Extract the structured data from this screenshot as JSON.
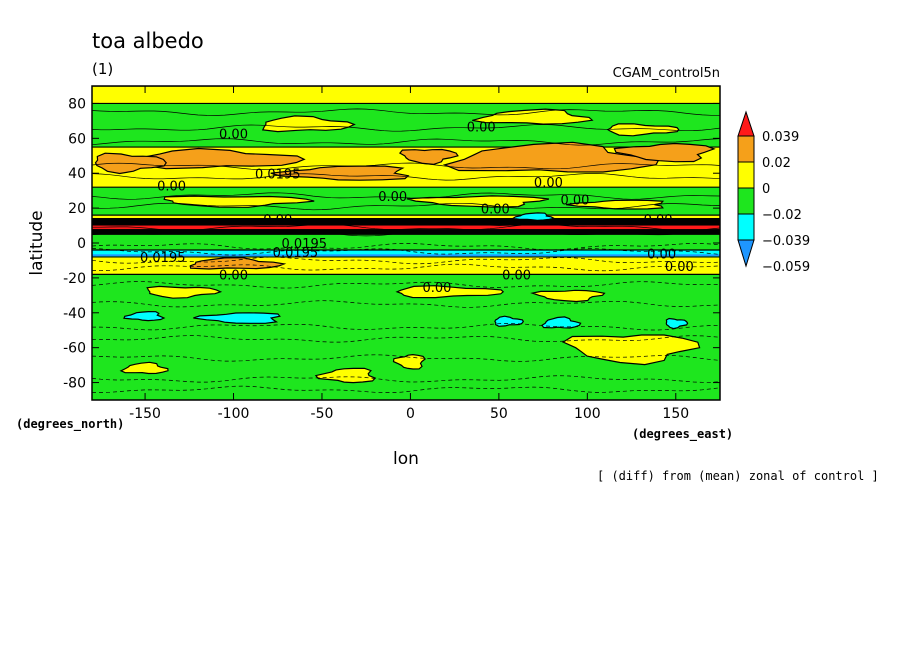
{
  "chart_data": {
    "type": "heatmap",
    "title": "toa albedo",
    "subtitle": "(1)",
    "run_label": "CGAM_control5n",
    "xlabel": "lon",
    "ylabel": "latitude",
    "x_units": "(degrees_east)",
    "y_units": "(degrees_north)",
    "xlim": [
      -180,
      175
    ],
    "ylim": [
      -90,
      90
    ],
    "x_ticks": [
      -150,
      -100,
      -50,
      0,
      50,
      100,
      150
    ],
    "y_ticks": [
      80,
      60,
      40,
      20,
      0,
      -20,
      -40,
      -60,
      -80
    ],
    "x_tick_labels": [
      "-150",
      "-100",
      "-50",
      "0",
      "50",
      "100",
      "150"
    ],
    "y_tick_labels": [
      "80",
      "60",
      "40",
      "20",
      "0",
      "-20",
      "-40",
      "-60",
      "-80"
    ],
    "colorbar": {
      "levels": [
        0.039,
        0.02,
        0,
        -0.02,
        -0.039,
        -0.059
      ],
      "labels": [
        "0.039",
        "0.02",
        "0",
        "−0.02",
        "−0.039",
        "−0.059"
      ],
      "colors": [
        "#ff1a1a",
        "#f5a01a",
        "#ffff00",
        "#1ee61e",
        "#00ffff",
        "#1e96ff"
      ]
    },
    "zonal_bands": [
      {
        "lat_min": 80,
        "lat_max": 90,
        "class": "yellow"
      },
      {
        "lat_min": 55,
        "lat_max": 80,
        "class": "green"
      },
      {
        "lat_min": 32,
        "lat_max": 55,
        "class": "yellow"
      },
      {
        "lat_min": 16,
        "lat_max": 32,
        "class": "green"
      },
      {
        "lat_min": 14,
        "lat_max": 16,
        "class": "yellow"
      },
      {
        "lat_min": 5,
        "lat_max": 14,
        "class": "black"
      },
      {
        "lat_min": -4,
        "lat_max": 5,
        "class": "green"
      },
      {
        "lat_min": -8,
        "lat_max": -4,
        "class": "cyan"
      },
      {
        "lat_min": -18,
        "lat_max": -8,
        "class": "yellow"
      },
      {
        "lat_min": -90,
        "lat_max": -18,
        "class": "green"
      }
    ],
    "patches": [
      {
        "lon": 80,
        "lat": 48,
        "rlon": 55,
        "rlat": 8,
        "class": "orange"
      },
      {
        "lon": -110,
        "lat": 48,
        "rlon": 45,
        "rlat": 5,
        "class": "orange"
      },
      {
        "lon": -160,
        "lat": 46,
        "rlon": 20,
        "rlat": 5,
        "class": "orange"
      },
      {
        "lon": 10,
        "lat": 50,
        "rlon": 15,
        "rlat": 4,
        "class": "orange"
      },
      {
        "lon": 145,
        "lat": 52,
        "rlon": 25,
        "rlat": 5,
        "class": "orange"
      },
      {
        "lon": -35,
        "lat": 40,
        "rlon": 35,
        "rlat": 4,
        "class": "orange"
      },
      {
        "lon": 70,
        "lat": 72,
        "rlon": 30,
        "rlat": 4,
        "class": "yellow"
      },
      {
        "lon": -60,
        "lat": 68,
        "rlon": 25,
        "rlat": 4,
        "class": "yellow"
      },
      {
        "lon": 130,
        "lat": 65,
        "rlon": 20,
        "rlat": 3,
        "class": "yellow"
      },
      {
        "lon": -100,
        "lat": 24,
        "rlon": 40,
        "rlat": 3,
        "class": "yellow"
      },
      {
        "lon": 40,
        "lat": 24,
        "rlon": 35,
        "rlat": 3,
        "class": "yellow"
      },
      {
        "lon": 120,
        "lat": 22,
        "rlon": 25,
        "rlat": 2.5,
        "class": "yellow"
      },
      {
        "lon": 70,
        "lat": 15,
        "rlon": 10,
        "rlat": 2,
        "class": "cyan"
      },
      {
        "lon": -100,
        "lat": -12,
        "rlon": 25,
        "rlat": 3,
        "class": "orange"
      },
      {
        "lon": 20,
        "lat": -28,
        "rlon": 30,
        "rlat": 3,
        "class": "yellow"
      },
      {
        "lon": -130,
        "lat": -28,
        "rlon": 20,
        "rlat": 3,
        "class": "yellow"
      },
      {
        "lon": 90,
        "lat": -30,
        "rlon": 18,
        "rlat": 3,
        "class": "yellow"
      },
      {
        "lon": -95,
        "lat": -43,
        "rlon": 22,
        "rlat": 3,
        "class": "cyan"
      },
      {
        "lon": -150,
        "lat": -42,
        "rlon": 10,
        "rlat": 2.5,
        "class": "cyan"
      },
      {
        "lon": 85,
        "lat": -46,
        "rlon": 10,
        "rlat": 3,
        "class": "cyan"
      },
      {
        "lon": 55,
        "lat": -45,
        "rlon": 8,
        "rlat": 2.5,
        "class": "cyan"
      },
      {
        "lon": 150,
        "lat": -46,
        "rlon": 6,
        "rlat": 2.5,
        "class": "cyan"
      },
      {
        "lon": 125,
        "lat": -60,
        "rlon": 35,
        "rlat": 8,
        "class": "yellow"
      },
      {
        "lon": 0,
        "lat": -68,
        "rlon": 8,
        "rlat": 4,
        "class": "yellow"
      },
      {
        "lon": -35,
        "lat": -76,
        "rlon": 15,
        "rlat": 4,
        "class": "yellow"
      },
      {
        "lon": -150,
        "lat": -72,
        "rlon": 12,
        "rlat": 3,
        "class": "yellow"
      }
    ],
    "contour_labels": [
      {
        "lon": -100,
        "lat": 60,
        "text": "0.00"
      },
      {
        "lon": 40,
        "lat": 64,
        "text": "0.00"
      },
      {
        "lon": -75,
        "lat": 37,
        "text": "0.0195"
      },
      {
        "lon": -135,
        "lat": 30,
        "text": "0.00"
      },
      {
        "lon": -10,
        "lat": 24,
        "text": "0.00"
      },
      {
        "lon": 78,
        "lat": 32,
        "text": "0.00"
      },
      {
        "lon": 93,
        "lat": 22,
        "text": "0.00"
      },
      {
        "lon": 48,
        "lat": 17,
        "text": "0.00"
      },
      {
        "lon": -75,
        "lat": 11,
        "text": "0.00"
      },
      {
        "lon": 140,
        "lat": 11,
        "text": "0.00"
      },
      {
        "lon": -60,
        "lat": -3,
        "text": "0.0195"
      },
      {
        "lon": -65,
        "lat": -8,
        "text": "0.0195"
      },
      {
        "lon": -140,
        "lat": -11,
        "text": "0.0195"
      },
      {
        "lon": -100,
        "lat": -21,
        "text": "0.00"
      },
      {
        "lon": 15,
        "lat": -28,
        "text": "0.00"
      },
      {
        "lon": 60,
        "lat": -21,
        "text": "0.00"
      },
      {
        "lon": 142,
        "lat": -9,
        "text": "0.00"
      },
      {
        "lon": 152,
        "lat": -16,
        "text": "0.00"
      }
    ],
    "annotation": "[ (diff) from (mean) zonal of control ]"
  }
}
